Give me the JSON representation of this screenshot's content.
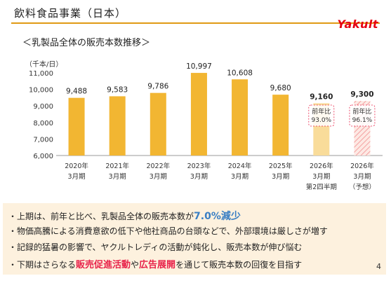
{
  "title": "飲料食品事業（日本）",
  "brand": "Yakult",
  "page_number": "4",
  "chart_data": {
    "type": "bar",
    "title": "＜乳製品全体の販売本数推移＞",
    "ylabel": "（千本/日）",
    "ylim": [
      6000,
      11000
    ],
    "yticks": [
      "6,000",
      "7,000",
      "8,000",
      "9,000",
      "10,000",
      "11,000"
    ],
    "categories": [
      [
        "2020年",
        "3月期"
      ],
      [
        "2021年",
        "3月期"
      ],
      [
        "2022年",
        "3月期"
      ],
      [
        "2023年",
        "3月期"
      ],
      [
        "2024年",
        "3月期"
      ],
      [
        "2025年",
        "3月期"
      ],
      [
        "2026年",
        "3月期",
        "第2四半期"
      ],
      [
        "2026年",
        "3月期",
        "（予想）"
      ]
    ],
    "values": [
      9488,
      9583,
      9786,
      10997,
      10608,
      9680,
      9160,
      9300
    ],
    "value_labels": [
      "9,488",
      "9,583",
      "9,786",
      "10,997",
      "10,608",
      "9,680",
      "9,160",
      "9,300"
    ],
    "bar_styles": [
      "solid",
      "solid",
      "solid",
      "solid",
      "solid",
      "solid",
      "light",
      "striped"
    ],
    "bold_labels": [
      false,
      false,
      false,
      false,
      false,
      false,
      true,
      true
    ],
    "annotations": [
      {
        "bar_index": 6,
        "lines": [
          "前年比",
          "93.0%"
        ]
      },
      {
        "bar_index": 7,
        "lines": [
          "前年比",
          "96.1%"
        ]
      }
    ],
    "colors": {
      "bar": "#f2b632",
      "light": "#f9dc9a",
      "stripe": "#f3a0a0",
      "axis": "#999999"
    }
  },
  "bullets": [
    [
      {
        "t": "・上期は、前年と比べ、乳製品全体の販売本数が",
        "s": ""
      },
      {
        "t": "7.0%減少",
        "s": "blue"
      }
    ],
    [
      {
        "t": "・物価高騰による消費意欲の低下や他社商品の台頭などで、外部環境は厳しさが増す",
        "s": ""
      }
    ],
    [
      {
        "t": "・記録的猛暑の影響で、ヤクルトレディの活動が鈍化し、販売本数が伸び悩む",
        "s": ""
      }
    ],
    [
      {
        "t": "・下期はさらなる",
        "s": ""
      },
      {
        "t": "販売促進活動",
        "s": "red"
      },
      {
        "t": "や",
        "s": ""
      },
      {
        "t": "広告展開",
        "s": "red"
      },
      {
        "t": "を通じて販売本数の回復を目指す",
        "s": ""
      }
    ]
  ]
}
